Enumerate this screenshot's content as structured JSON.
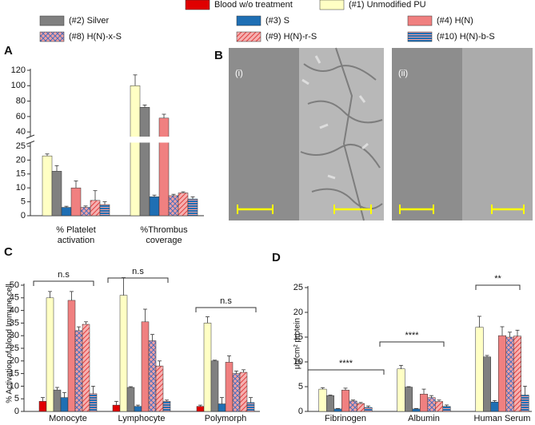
{
  "images_panel": {
    "panel_label": "B",
    "images": [
      {
        "label": "(i)"
      },
      {
        "label": "(ii)"
      }
    ]
  },
  "chart_data": [
    {
      "type": "bar",
      "panel_label": "A",
      "categories": [
        "% Platelet activation",
        "%Thrombus coverage"
      ],
      "segments": [
        {
          "ylim": [
            0,
            26
          ],
          "yticks": [
            0,
            5,
            10,
            15,
            20,
            25
          ]
        },
        {
          "ylim": [
            35,
            120
          ],
          "yticks": [
            40,
            60,
            80,
            100,
            120
          ]
        }
      ],
      "series": [
        {
          "name": "(#1) Unmodified PU",
          "color": "#ffffc4",
          "values": [
            21.5,
            100
          ],
          "errors": [
            0.7,
            14
          ]
        },
        {
          "name": "(#2) Silver",
          "color": "#808080",
          "values": [
            16,
            72
          ],
          "errors": [
            2,
            3
          ]
        },
        {
          "name": "(#3) S",
          "color": "#1f6fb4",
          "values": [
            3,
            6.8
          ],
          "errors": [
            0.4,
            0.6
          ]
        },
        {
          "name": "(#4) H(N)",
          "color": "#f08080",
          "values": [
            10,
            58
          ],
          "errors": [
            2.5,
            5
          ]
        },
        {
          "name": "(#8) H(N)-x-S",
          "color": "#f4a0a0",
          "pattern": "crosshatch",
          "pattern_color": "#4a6fc0",
          "values": [
            3,
            7.2
          ],
          "errors": [
            0.5,
            0.5
          ]
        },
        {
          "name": "(#9) H(N)-r-S",
          "color": "#f6b0b0",
          "pattern": "diagonal",
          "pattern_color": "#e04040",
          "values": [
            5.5,
            8.2
          ],
          "errors": [
            3.5,
            0.4
          ]
        },
        {
          "name": "(#10) H(N)-b-S",
          "color": "#1f6fb4",
          "pattern": "horizontal",
          "pattern_color": "#f4a0a0",
          "values": [
            4,
            6
          ],
          "errors": [
            1,
            0.8
          ]
        }
      ]
    },
    {
      "type": "bar",
      "panel_label": "C",
      "y_label": "% Activation of blood Immune cell",
      "categories": [
        "Monocyte",
        "Lymphocyte",
        "Polymorph"
      ],
      "ylim": [
        0,
        50
      ],
      "yticks": [
        0,
        5,
        10,
        15,
        20,
        25,
        30,
        35,
        40,
        45,
        50
      ],
      "annotations": [
        "n.s",
        "n.s",
        "n.s"
      ],
      "series": [
        {
          "name": "Blood w/o treatment",
          "color": "#e00000",
          "values": [
            4,
            2.5,
            2
          ],
          "errors": [
            1.5,
            1.5,
            0.5
          ]
        },
        {
          "name": "(#1) Unmodified PU",
          "color": "#ffffc4",
          "values": [
            45,
            46,
            35
          ],
          "errors": [
            2.5,
            7,
            2.5
          ]
        },
        {
          "name": "(#2) Silver",
          "color": "#808080",
          "values": [
            8.5,
            9.5,
            20
          ],
          "errors": [
            1,
            0.3,
            0.3
          ]
        },
        {
          "name": "(#3) S",
          "color": "#1f6fb4",
          "values": [
            5.5,
            2,
            3
          ],
          "errors": [
            2,
            0.5,
            2.5
          ]
        },
        {
          "name": "(#4) H(N)",
          "color": "#f08080",
          "values": [
            44,
            35.5,
            19.5
          ],
          "errors": [
            3.5,
            5,
            2.5
          ]
        },
        {
          "name": "(#8) H(N)-x-S",
          "color": "#f4a0a0",
          "pattern": "crosshatch",
          "pattern_color": "#4a6fc0",
          "values": [
            32,
            28,
            15
          ],
          "errors": [
            1.5,
            2.5,
            1
          ]
        },
        {
          "name": "(#9) H(N)-r-S",
          "color": "#f6b0b0",
          "pattern": "diagonal",
          "pattern_color": "#e04040",
          "values": [
            34.5,
            18,
            15.5
          ],
          "errors": [
            1,
            2,
            1
          ]
        },
        {
          "name": "(#10) H(N)-b-S",
          "color": "#1f6fb4",
          "pattern": "horizontal",
          "pattern_color": "#f4a0a0",
          "values": [
            7,
            4,
            3.5
          ],
          "errors": [
            3,
            0.5,
            2
          ]
        }
      ]
    },
    {
      "type": "bar",
      "panel_label": "D",
      "y_label": "µg/cm² protein",
      "categories": [
        "Fibrinogen",
        "Albumin",
        "Human Serum"
      ],
      "ylim": [
        0,
        25
      ],
      "yticks": [
        0,
        5,
        10,
        15,
        20,
        25
      ],
      "annotations": [
        "****",
        "****",
        "**"
      ],
      "series": [
        {
          "name": "(#1) Unmodified PU",
          "color": "#ffffc4",
          "values": [
            4.5,
            8.6,
            17
          ],
          "errors": [
            0.3,
            0.7,
            2.2
          ]
        },
        {
          "name": "(#2) Silver",
          "color": "#808080",
          "values": [
            3.2,
            4.9,
            11
          ],
          "errors": [
            0.1,
            0.1,
            0.3
          ]
        },
        {
          "name": "(#3) S",
          "color": "#1f6fb4",
          "values": [
            0.5,
            0.5,
            1.9
          ],
          "errors": [
            0.1,
            0.1,
            0.3
          ]
        },
        {
          "name": "(#4) H(N)",
          "color": "#f08080",
          "values": [
            4.3,
            3.5,
            15.3
          ],
          "errors": [
            0.4,
            1,
            1.8
          ]
        },
        {
          "name": "(#8) H(N)-x-S",
          "color": "#f4a0a0",
          "pattern": "crosshatch",
          "pattern_color": "#4a6fc0",
          "values": [
            2.1,
            2.8,
            15
          ],
          "errors": [
            0.2,
            0.4,
            1
          ]
        },
        {
          "name": "(#9) H(N)-r-S",
          "color": "#f6b0b0",
          "pattern": "diagonal",
          "pattern_color": "#e04040",
          "values": [
            1.6,
            2,
            15.2
          ],
          "errors": [
            0.2,
            0.3,
            1.2
          ]
        },
        {
          "name": "(#10) H(N)-b-S",
          "color": "#1f6fb4",
          "pattern": "horizontal",
          "pattern_color": "#f4a0a0",
          "values": [
            0.8,
            1,
            3.3
          ],
          "errors": [
            0.3,
            0.3,
            1.8
          ]
        }
      ]
    }
  ]
}
